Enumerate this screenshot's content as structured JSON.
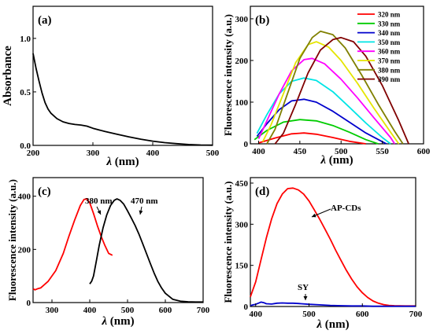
{
  "chart_data": [
    {
      "panel_label": "(a)",
      "type": "line",
      "xlabel_symbol": "λ",
      "xlabel_unit": " (nm)",
      "ylabel": "Absorbance",
      "xlim": [
        200,
        500
      ],
      "ylim": [
        0,
        1.3
      ],
      "xticks": [
        200,
        300,
        400,
        500
      ],
      "yticks": [
        0.0,
        0.5,
        1.0
      ],
      "ytick_labels": [
        "0.0",
        "0.5",
        "1.0"
      ],
      "series": [
        {
          "color": "#000000",
          "x": [
            200,
            205,
            210,
            215,
            220,
            225,
            230,
            240,
            250,
            260,
            270,
            280,
            290,
            300,
            320,
            340,
            360,
            380,
            400,
            420,
            440,
            460,
            480,
            500
          ],
          "y": [
            0.86,
            0.72,
            0.6,
            0.49,
            0.4,
            0.34,
            0.3,
            0.25,
            0.22,
            0.205,
            0.195,
            0.19,
            0.18,
            0.16,
            0.13,
            0.105,
            0.08,
            0.058,
            0.04,
            0.026,
            0.016,
            0.008,
            0.004,
            0.002
          ]
        }
      ]
    },
    {
      "panel_label": "(b)",
      "type": "line",
      "xlabel_symbol": "λ",
      "xlabel_unit": " (nm)",
      "ylabel": "Fluorescence intensity (a.u.)",
      "xlim": [
        390,
        600
      ],
      "ylim": [
        0,
        330
      ],
      "xticks": [
        400,
        450,
        500,
        550,
        600
      ],
      "yticks": [
        0,
        100,
        200,
        300
      ],
      "legend_position": "top-right",
      "series": [
        {
          "name": "320 nm",
          "color": "#ff0000",
          "x": [
            400,
            420,
            440,
            455,
            470,
            490,
            510,
            530
          ],
          "y": [
            2,
            14,
            24,
            26,
            23,
            15,
            6,
            0
          ]
        },
        {
          "name": "330 nm",
          "color": "#00cc00",
          "x": [
            395,
            410,
            430,
            450,
            470,
            490,
            510,
            530,
            545
          ],
          "y": [
            10,
            32,
            52,
            58,
            55,
            44,
            28,
            10,
            0
          ]
        },
        {
          "name": "340 nm",
          "color": "#0000cc",
          "x": [
            398,
            410,
            425,
            440,
            455,
            470,
            490,
            510,
            530,
            550,
            555
          ],
          "y": [
            18,
            48,
            82,
            103,
            107,
            100,
            78,
            52,
            26,
            5,
            0
          ]
        },
        {
          "name": "350 nm",
          "color": "#00e5e5",
          "x": [
            398,
            410,
            425,
            440,
            455,
            470,
            490,
            510,
            530,
            550,
            560
          ],
          "y": [
            25,
            70,
            120,
            150,
            158,
            152,
            125,
            88,
            50,
            15,
            0
          ]
        },
        {
          "name": "360 nm",
          "color": "#ff00ff",
          "x": [
            400,
            410,
            425,
            440,
            455,
            465,
            480,
            500,
            520,
            540,
            560,
            565
          ],
          "y": [
            12,
            55,
            120,
            175,
            202,
            205,
            192,
            155,
            110,
            62,
            15,
            0
          ]
        },
        {
          "name": "370 nm",
          "color": "#e5e500",
          "x": [
            405,
            415,
            430,
            445,
            460,
            470,
            485,
            500,
            520,
            540,
            560,
            570
          ],
          "y": [
            5,
            45,
            120,
            195,
            238,
            245,
            232,
            200,
            145,
            85,
            28,
            0
          ]
        },
        {
          "name": "380 nm",
          "color": "#808000",
          "x": [
            410,
            420,
            435,
            450,
            465,
            475,
            490,
            505,
            525,
            545,
            565,
            575
          ],
          "y": [
            0,
            35,
            120,
            205,
            255,
            270,
            262,
            230,
            165,
            95,
            30,
            0
          ]
        },
        {
          "name": "390 nm",
          "color": "#800000",
          "x": [
            420,
            430,
            445,
            460,
            475,
            490,
            500,
            515,
            530,
            550,
            570,
            582
          ],
          "y": [
            0,
            25,
            95,
            170,
            225,
            250,
            255,
            245,
            210,
            140,
            55,
            0
          ]
        }
      ]
    },
    {
      "panel_label": "(c)",
      "type": "line",
      "xlabel_symbol": "λ",
      "xlabel_unit": " (nm)",
      "ylabel": "Fluorescence intensity (a.u.)",
      "xlim": [
        250,
        700
      ],
      "ylim": [
        0,
        470
      ],
      "xticks": [
        300,
        400,
        500,
        600,
        700
      ],
      "yticks": [
        0,
        200,
        400
      ],
      "annotations": [
        {
          "text": "380 nm",
          "x": 390,
          "y": 390
        },
        {
          "text": "470 nm",
          "x": 470,
          "y": 390
        }
      ],
      "series": [
        {
          "color": "#ff0000",
          "x": [
            250,
            255,
            262,
            270,
            290,
            310,
            330,
            345,
            360,
            375,
            385,
            392,
            400,
            410,
            420,
            430,
            440,
            450,
            460
          ],
          "y": [
            52,
            48,
            52,
            55,
            80,
            120,
            185,
            250,
            310,
            365,
            388,
            390,
            375,
            335,
            290,
            250,
            215,
            185,
            178
          ]
        },
        {
          "color": "#000000",
          "x": [
            400,
            405,
            410,
            418,
            425,
            435,
            445,
            455,
            465,
            472,
            480,
            490,
            500,
            510,
            520,
            530,
            540,
            550,
            560,
            570,
            580,
            590,
            600,
            620,
            640,
            660,
            680,
            700
          ],
          "y": [
            70,
            80,
            100,
            160,
            215,
            280,
            330,
            365,
            385,
            390,
            385,
            370,
            345,
            318,
            290,
            258,
            222,
            185,
            148,
            112,
            80,
            55,
            35,
            12,
            5,
            3,
            2,
            2
          ]
        }
      ]
    },
    {
      "panel_label": "(d)",
      "type": "line",
      "xlabel_symbol": "λ",
      "xlabel_unit": " (nm)",
      "ylabel": "Fluorescence intensity (a.u.)",
      "xlim": [
        390,
        700
      ],
      "ylim": [
        0,
        470
      ],
      "xticks": [
        400,
        500,
        600,
        700
      ],
      "yticks": [
        0,
        150,
        300,
        450
      ],
      "annotations": [
        {
          "text": "AP-CDs",
          "x": 482,
          "y": 415
        },
        {
          "text": "SY",
          "x": 478,
          "y": 14
        }
      ],
      "series": [
        {
          "name": "AP-CDs",
          "color": "#ff0000",
          "x": [
            390,
            400,
            410,
            420,
            430,
            440,
            450,
            460,
            470,
            480,
            490,
            500,
            510,
            520,
            530,
            540,
            550,
            560,
            570,
            580,
            590,
            600,
            610,
            620,
            630,
            640,
            650,
            660,
            680,
            700
          ],
          "y": [
            35,
            90,
            170,
            250,
            320,
            375,
            410,
            430,
            432,
            425,
            410,
            385,
            352,
            318,
            282,
            245,
            205,
            168,
            132,
            100,
            72,
            50,
            33,
            20,
            12,
            7,
            4,
            3,
            2,
            2
          ]
        },
        {
          "name": "SY",
          "color": "#0000cc",
          "x": [
            390,
            395,
            400,
            405,
            410,
            415,
            420,
            430,
            440,
            450,
            460,
            470,
            480,
            500,
            520,
            540,
            560,
            580,
            600,
            620,
            650,
            700
          ],
          "y": [
            3,
            6,
            8,
            12,
            16,
            14,
            10,
            9,
            12,
            13,
            12,
            12,
            11,
            8,
            6,
            4,
            3,
            2,
            2,
            1,
            1,
            1
          ]
        }
      ]
    }
  ]
}
